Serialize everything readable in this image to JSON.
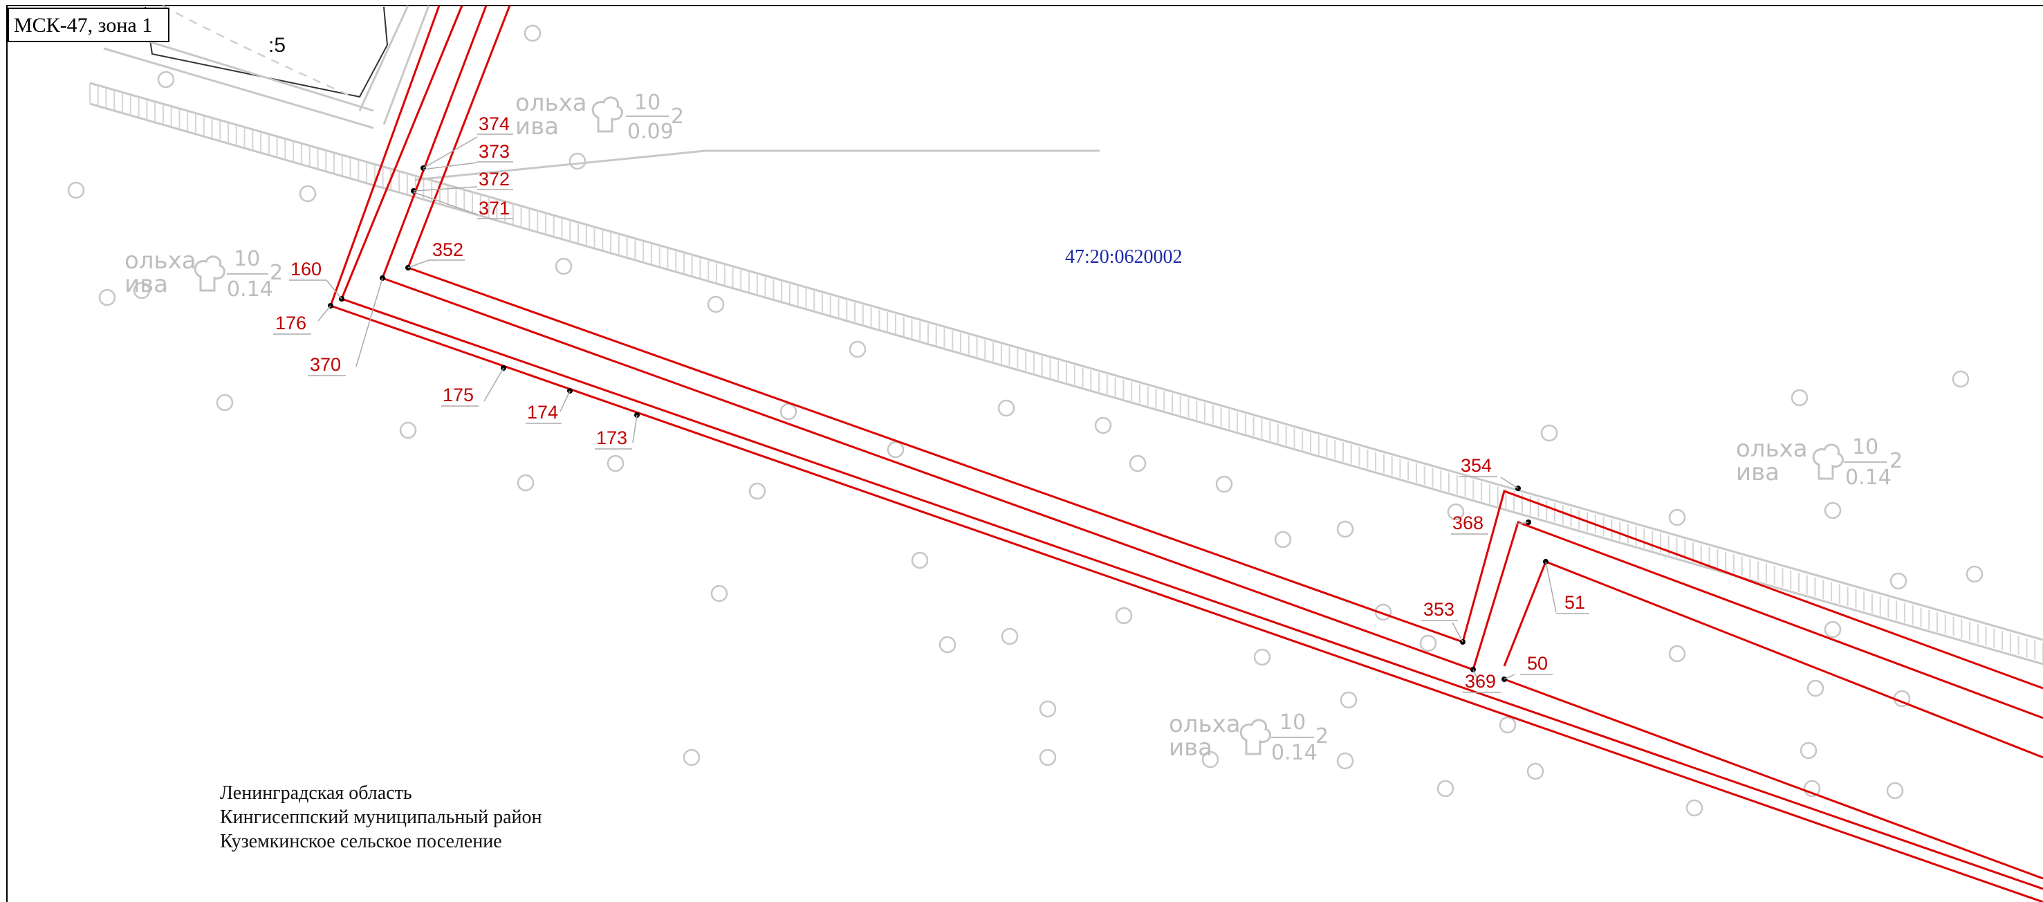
{
  "map": {
    "crs_label": "МСК-47, зона 1",
    "parcel_suffix": ":5",
    "cadastral_block": "47:20:0620002",
    "admin_lines": [
      "Ленинградская область",
      "Кингисеппский муниципальный район",
      "Кузeмкинское сельское поселение"
    ],
    "vegetation": {
      "species_top": "ольха",
      "species_bottom": "ива",
      "height": "10",
      "spacing": "2"
    },
    "vegetation_labels": [
      {
        "density": "0.09"
      },
      {
        "density": "0.14"
      },
      {
        "density": "0.14"
      },
      {
        "density": "0.14"
      }
    ],
    "points": [
      "374",
      "373",
      "372",
      "371",
      "352",
      "160",
      "176",
      "370",
      "175",
      "174",
      "173",
      "354",
      "368",
      "353",
      "369",
      "51",
      "50"
    ],
    "colors": {
      "boundary": "#dd0000",
      "point_label": "#c00000",
      "block_label": "#1a2aa8",
      "topo_grey": "#c8c8c8"
    }
  }
}
